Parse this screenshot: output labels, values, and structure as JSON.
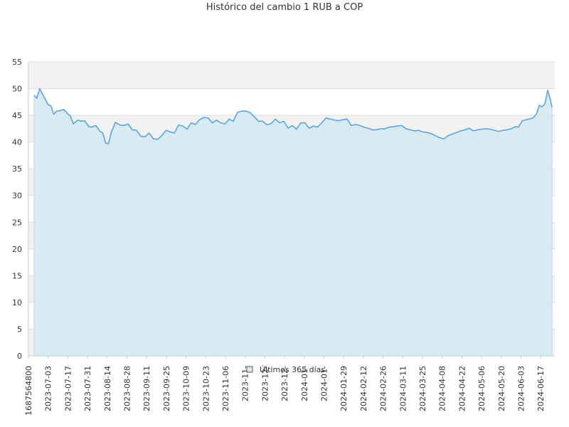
{
  "chart_data": {
    "type": "area",
    "title": "Histórico del cambio 1 RUB a COP",
    "xlabel": "",
    "ylabel": "",
    "ylim": [
      0,
      55
    ],
    "yticks": [
      0,
      5,
      10,
      15,
      20,
      25,
      30,
      35,
      40,
      45,
      50,
      55
    ],
    "xlim": [
      "2023-06-19",
      "2024-06-28"
    ],
    "xticks": [
      "1687564800",
      "2023-07-03",
      "2023-07-17",
      "2023-07-31",
      "2023-08-14",
      "2023-08-28",
      "2023-09-11",
      "2023-09-25",
      "2023-10-09",
      "2023-10-23",
      "2023-11-06",
      "2023-11-",
      "2023-12-",
      "2023-12-",
      "2024-01-",
      "2024-01-",
      "2024-01-29",
      "2024-02-12",
      "2024-02-26",
      "2024-03-11",
      "2024-03-25",
      "2024-04-08",
      "2024-04-22",
      "2024-05-06",
      "2024-05-20",
      "2024-06-03",
      "2024-06-17"
    ],
    "grid": true,
    "alternating_bands": true,
    "legend": {
      "position": "bottom-center"
    },
    "colors": {
      "line": "#5aa5e6",
      "fill": "#d6eaf2",
      "band": "#f2f2f2",
      "grid": "#dddddd"
    },
    "series": [
      {
        "name": "Últimos 365 días",
        "x": [
          "2023-06-23",
          "2023-06-25",
          "2023-06-27",
          "2023-06-30",
          "2023-07-03",
          "2023-07-05",
          "2023-07-07",
          "2023-07-09",
          "2023-07-12",
          "2023-07-14",
          "2023-07-17",
          "2023-07-19",
          "2023-07-21",
          "2023-07-24",
          "2023-07-27",
          "2023-07-29",
          "2023-08-01",
          "2023-08-03",
          "2023-08-06",
          "2023-08-09",
          "2023-08-11",
          "2023-08-13",
          "2023-08-15",
          "2023-08-17",
          "2023-08-20",
          "2023-08-23",
          "2023-08-26",
          "2023-08-29",
          "2023-09-01",
          "2023-09-04",
          "2023-09-07",
          "2023-09-10",
          "2023-09-13",
          "2023-09-16",
          "2023-09-19",
          "2023-09-22",
          "2023-09-25",
          "2023-09-28",
          "2023-10-01",
          "2023-10-04",
          "2023-10-07",
          "2023-10-10",
          "2023-10-13",
          "2023-10-16",
          "2023-10-19",
          "2023-10-22",
          "2023-10-25",
          "2023-10-28",
          "2023-10-31",
          "2023-11-03",
          "2023-11-06",
          "2023-11-09",
          "2023-11-12",
          "2023-11-15",
          "2023-11-18",
          "2023-11-21",
          "2023-11-24",
          "2023-11-27",
          "2023-11-30",
          "2023-12-03",
          "2023-12-06",
          "2023-12-09",
          "2023-12-12",
          "2023-12-15",
          "2023-12-18",
          "2023-12-21",
          "2023-12-24",
          "2023-12-27",
          "2023-12-30",
          "2024-01-02",
          "2024-01-05",
          "2024-01-08",
          "2024-01-11",
          "2024-01-14",
          "2024-01-17",
          "2024-01-20",
          "2024-01-23",
          "2024-01-26",
          "2024-01-29",
          "2024-02-01",
          "2024-02-04",
          "2024-02-07",
          "2024-02-10",
          "2024-02-13",
          "2024-02-16",
          "2024-02-19",
          "2024-02-22",
          "2024-02-25",
          "2024-02-28",
          "2024-03-02",
          "2024-03-05",
          "2024-03-08",
          "2024-03-11",
          "2024-03-14",
          "2024-03-17",
          "2024-03-20",
          "2024-03-23",
          "2024-03-26",
          "2024-03-29",
          "2024-04-01",
          "2024-04-04",
          "2024-04-07",
          "2024-04-10",
          "2024-04-13",
          "2024-04-16",
          "2024-04-19",
          "2024-04-22",
          "2024-04-25",
          "2024-04-28",
          "2024-05-01",
          "2024-05-04",
          "2024-05-07",
          "2024-05-10",
          "2024-05-13",
          "2024-05-16",
          "2024-05-19",
          "2024-05-22",
          "2024-05-25",
          "2024-05-28",
          "2024-05-31",
          "2024-06-02",
          "2024-06-05",
          "2024-06-08",
          "2024-06-11",
          "2024-06-13",
          "2024-06-15",
          "2024-06-17",
          "2024-06-19",
          "2024-06-21",
          "2024-06-23",
          "2024-06-25",
          "2024-06-26"
        ],
        "values": [
          48.8,
          48.2,
          50.0,
          48.5,
          47.0,
          46.8,
          45.2,
          45.8,
          45.9,
          46.1,
          45.3,
          44.8,
          43.4,
          44.1,
          43.9,
          44.0,
          42.9,
          42.8,
          43.1,
          42.0,
          41.7,
          39.8,
          39.7,
          41.8,
          43.7,
          43.2,
          43.1,
          43.4,
          42.3,
          42.2,
          41.1,
          41.0,
          41.7,
          40.6,
          40.5,
          41.2,
          42.2,
          41.9,
          41.7,
          43.2,
          43.0,
          42.4,
          43.6,
          43.3,
          44.2,
          44.6,
          44.5,
          43.6,
          44.1,
          43.6,
          43.4,
          44.3,
          43.9,
          45.6,
          45.8,
          45.8,
          45.5,
          44.7,
          43.9,
          43.9,
          43.2,
          43.5,
          44.3,
          43.6,
          43.9,
          42.6,
          43.1,
          42.4,
          43.6,
          43.6,
          42.6,
          43.0,
          42.8,
          43.6,
          44.5,
          44.3,
          44.1,
          44.0,
          44.2,
          44.3,
          43.1,
          43.3,
          43.1,
          42.8,
          42.6,
          42.3,
          42.3,
          42.5,
          42.5,
          42.8,
          42.9,
          43.0,
          43.1,
          42.5,
          42.3,
          42.1,
          42.2,
          41.9,
          41.8,
          41.6,
          41.2,
          40.8,
          40.6,
          41.2,
          41.5,
          41.8,
          42.1,
          42.3,
          42.6,
          42.1,
          42.3,
          42.4,
          42.5,
          42.4,
          42.2,
          42.0,
          42.2,
          42.3,
          42.5,
          42.9,
          42.8,
          44.0,
          44.2,
          44.4,
          44.6,
          45.3,
          46.9,
          46.6,
          47.2,
          49.7,
          47.8,
          46.5
        ]
      }
    ]
  }
}
